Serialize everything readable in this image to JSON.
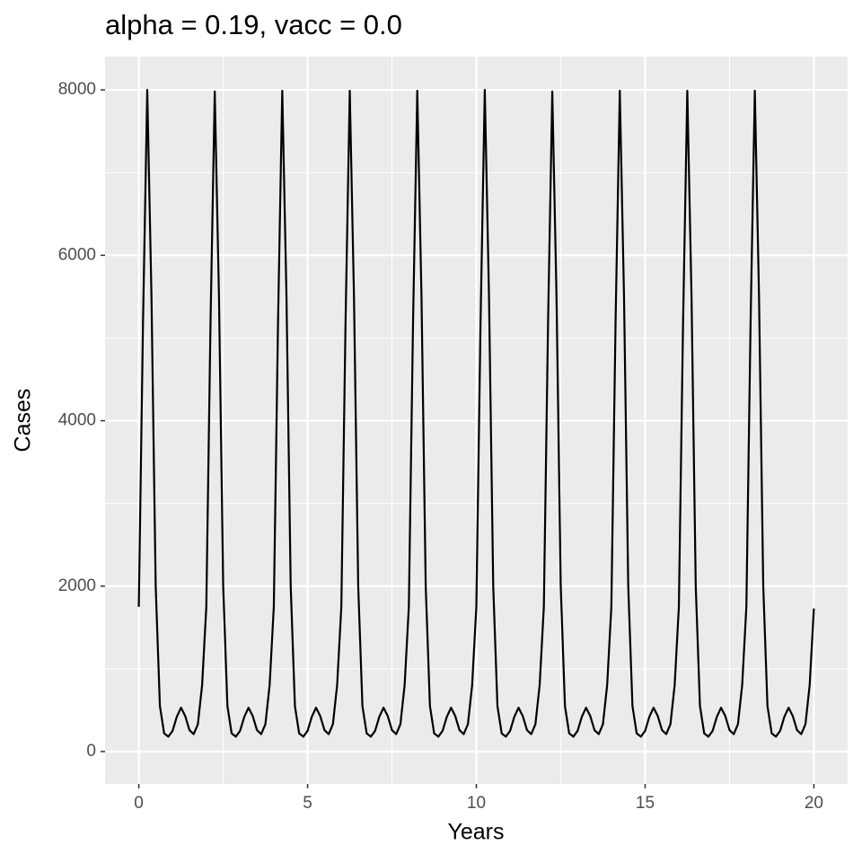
{
  "chart_data": {
    "type": "line",
    "title": "alpha = 0.19, vacc = 0.0",
    "x_label": "Years",
    "y_label": "Cases",
    "xlim": [
      -1,
      21
    ],
    "ylim": [
      -391,
      8403
    ],
    "xticks": [
      0,
      5,
      10,
      15,
      20
    ],
    "yticks": [
      0,
      2000,
      4000,
      6000,
      8000
    ],
    "x_minor_grid": [
      2.5,
      7.5,
      12.5,
      17.5
    ],
    "y_minor_grid": [
      1000,
      3000,
      5000,
      7000
    ],
    "grid": true,
    "background": "#ebebeb",
    "series": [
      {
        "color": "#000000",
        "x": [
          0,
          0.125,
          0.25,
          0.375,
          0.5,
          0.625,
          0.75,
          0.875,
          1,
          1.125,
          1.25,
          1.375,
          1.5,
          1.625,
          1.75,
          1.875,
          2,
          2.125,
          2.25,
          2.375,
          2.5,
          2.625,
          2.75,
          2.875,
          3,
          3.125,
          3.25,
          3.375,
          3.5,
          3.625,
          3.75,
          3.875,
          4,
          4.125,
          4.25,
          4.375,
          4.5,
          4.625,
          4.75,
          4.875,
          5,
          5.125,
          5.25,
          5.375,
          5.5,
          5.625,
          5.75,
          5.875,
          6,
          6.125,
          6.25,
          6.375,
          6.5,
          6.625,
          6.75,
          6.875,
          7,
          7.125,
          7.25,
          7.375,
          7.5,
          7.625,
          7.75,
          7.875,
          8,
          8.125,
          8.25,
          8.375,
          8.5,
          8.625,
          8.75,
          8.875,
          9,
          9.125,
          9.25,
          9.375,
          9.5,
          9.625,
          9.75,
          9.875,
          10,
          10.125,
          10.25,
          10.375,
          10.5,
          10.625,
          10.75,
          10.875,
          11,
          11.125,
          11.25,
          11.375,
          11.5,
          11.625,
          11.75,
          11.875,
          12,
          12.125,
          12.25,
          12.375,
          12.5,
          12.625,
          12.75,
          12.875,
          13,
          13.125,
          13.25,
          13.375,
          13.5,
          13.625,
          13.75,
          13.875,
          14,
          14.125,
          14.25,
          14.375,
          14.5,
          14.625,
          14.75,
          14.875,
          15,
          15.125,
          15.25,
          15.375,
          15.5,
          15.625,
          15.75,
          15.875,
          16,
          16.125,
          16.25,
          16.375,
          16.5,
          16.625,
          16.75,
          16.875,
          17,
          17.125,
          17.25,
          17.375,
          17.5,
          17.625,
          17.75,
          17.875,
          18,
          18.125,
          18.25,
          18.375,
          18.5,
          18.625,
          18.75,
          18.875,
          19,
          19.125,
          19.25,
          19.375,
          19.5,
          19.625,
          19.75,
          19.875,
          20
        ],
        "values": [
          1750,
          5200,
          8000,
          5500,
          2000,
          550,
          220,
          180,
          250,
          420,
          530,
          430,
          260,
          210,
          330,
          800,
          1750,
          5200,
          7980,
          5500,
          2000,
          550,
          220,
          180,
          250,
          420,
          530,
          430,
          260,
          210,
          330,
          800,
          1750,
          5200,
          7990,
          5500,
          2000,
          550,
          220,
          180,
          250,
          420,
          530,
          430,
          260,
          210,
          330,
          800,
          1750,
          5200,
          7990,
          5500,
          2000,
          550,
          220,
          180,
          250,
          420,
          530,
          430,
          260,
          210,
          330,
          800,
          1750,
          5200,
          7990,
          5500,
          2000,
          550,
          220,
          180,
          250,
          420,
          530,
          430,
          260,
          210,
          330,
          800,
          1750,
          5200,
          8000,
          5500,
          2000,
          550,
          220,
          180,
          250,
          420,
          530,
          430,
          260,
          210,
          330,
          800,
          1750,
          5200,
          7980,
          5500,
          2000,
          550,
          220,
          180,
          250,
          420,
          530,
          430,
          260,
          210,
          330,
          800,
          1750,
          5200,
          7990,
          5500,
          2000,
          550,
          220,
          180,
          250,
          420,
          530,
          430,
          260,
          210,
          330,
          800,
          1750,
          5200,
          7990,
          5500,
          2000,
          550,
          220,
          180,
          250,
          420,
          530,
          430,
          260,
          210,
          330,
          800,
          1750,
          5200,
          7990,
          5500,
          2000,
          550,
          220,
          180,
          250,
          420,
          530,
          430,
          260,
          210,
          330,
          800,
          1730
        ]
      }
    ]
  }
}
